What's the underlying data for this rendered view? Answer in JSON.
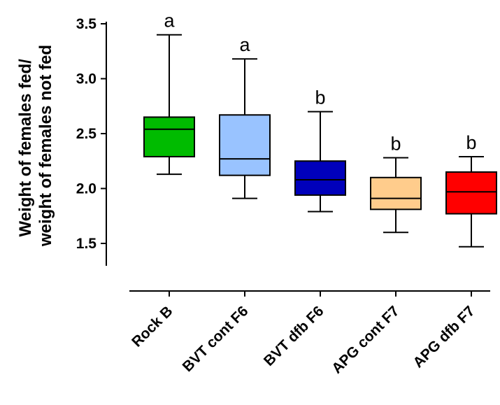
{
  "chart_data": {
    "type": "box",
    "ylabel_lines": [
      "Weight of females fed/",
      "weight of females not fed"
    ],
    "ylim": [
      1.3,
      3.6
    ],
    "yticks": [
      1.5,
      2.0,
      2.5,
      3.0,
      3.5
    ],
    "ytick_labels": [
      "1.5",
      "2.0",
      "2.5",
      "3.0",
      "3.5"
    ],
    "categories": [
      "Rock B",
      "BVT cont F6",
      "BVT dfb F6",
      "APG cont F7",
      "APG dfb F7"
    ],
    "boxes": [
      {
        "category": "Rock B",
        "min": 2.13,
        "q1": 2.29,
        "median": 2.54,
        "q3": 2.65,
        "max": 3.4,
        "color": "#00bb00",
        "sig": "a"
      },
      {
        "category": "BVT cont F6",
        "min": 1.91,
        "q1": 2.12,
        "median": 2.27,
        "q3": 2.67,
        "max": 3.18,
        "color": "#99c3ff",
        "sig": "a"
      },
      {
        "category": "BVT dfb F6",
        "min": 1.79,
        "q1": 1.94,
        "median": 2.08,
        "q3": 2.25,
        "max": 2.7,
        "color": "#0000bb",
        "sig": "b"
      },
      {
        "category": "APG cont F7",
        "min": 1.6,
        "q1": 1.81,
        "median": 1.91,
        "q3": 2.1,
        "max": 2.28,
        "color": "#ffcc8c",
        "sig": "b"
      },
      {
        "category": "APG dfb F7",
        "min": 1.47,
        "q1": 1.77,
        "median": 1.97,
        "q3": 2.15,
        "max": 2.29,
        "color": "#ff0000",
        "sig": "b"
      }
    ],
    "grid": false,
    "legend": "none"
  }
}
